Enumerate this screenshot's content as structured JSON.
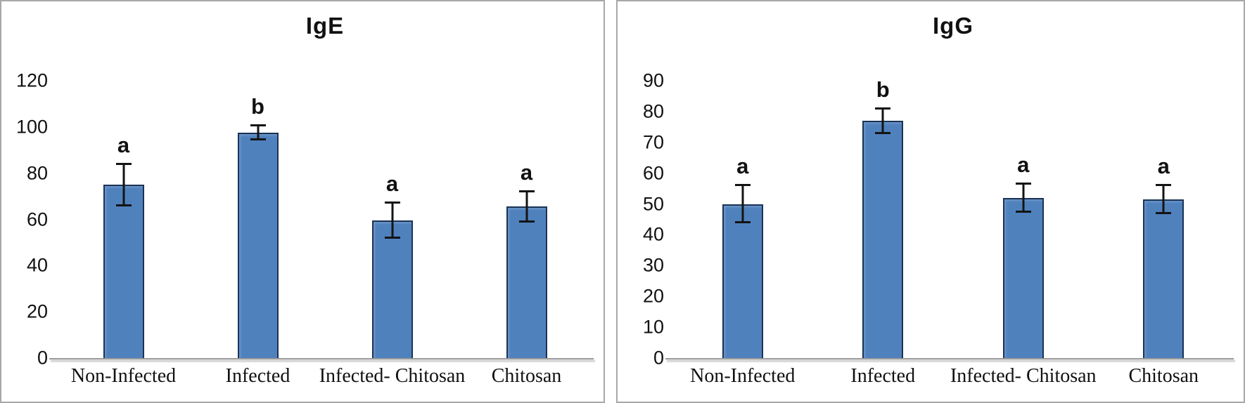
{
  "figure": {
    "panel_count": 2,
    "panel_border_color": "#a8a8a8",
    "background": "#ffffff"
  },
  "colors": {
    "bar_fill": "#4f81bd",
    "bar_border": "#1b3254",
    "error_bar": "#141414",
    "axis_line": "#9b9b9b",
    "text": "#111111"
  },
  "chart_data": [
    {
      "type": "bar",
      "title": "IgE",
      "xlabel": "",
      "ylabel": "",
      "categories": [
        "Non-Infected",
        "Infected",
        "Infected- Chitosan",
        "Chitosan"
      ],
      "values": [
        75,
        97.5,
        59.5,
        65.5
      ],
      "errors": [
        9,
        3,
        7.5,
        6.5
      ],
      "sig_letters": [
        "a",
        "b",
        "a",
        "a"
      ],
      "ylim": [
        0,
        120
      ],
      "ytick_step": 20,
      "yticks": [
        0,
        20,
        40,
        60,
        80,
        100,
        120
      ],
      "grid": false,
      "legend": false
    },
    {
      "type": "bar",
      "title": "IgG",
      "xlabel": "",
      "ylabel": "",
      "categories": [
        "Non-Infected",
        "Infected",
        "Infected- Chitosan",
        "Chitosan"
      ],
      "values": [
        50,
        77,
        52,
        51.5
      ],
      "errors": [
        6,
        4,
        4.5,
        4.5
      ],
      "sig_letters": [
        "a",
        "b",
        "a",
        "a"
      ],
      "ylim": [
        0,
        90
      ],
      "ytick_step": 10,
      "yticks": [
        0,
        10,
        20,
        30,
        40,
        50,
        60,
        70,
        80,
        90
      ],
      "grid": false,
      "legend": false
    }
  ]
}
